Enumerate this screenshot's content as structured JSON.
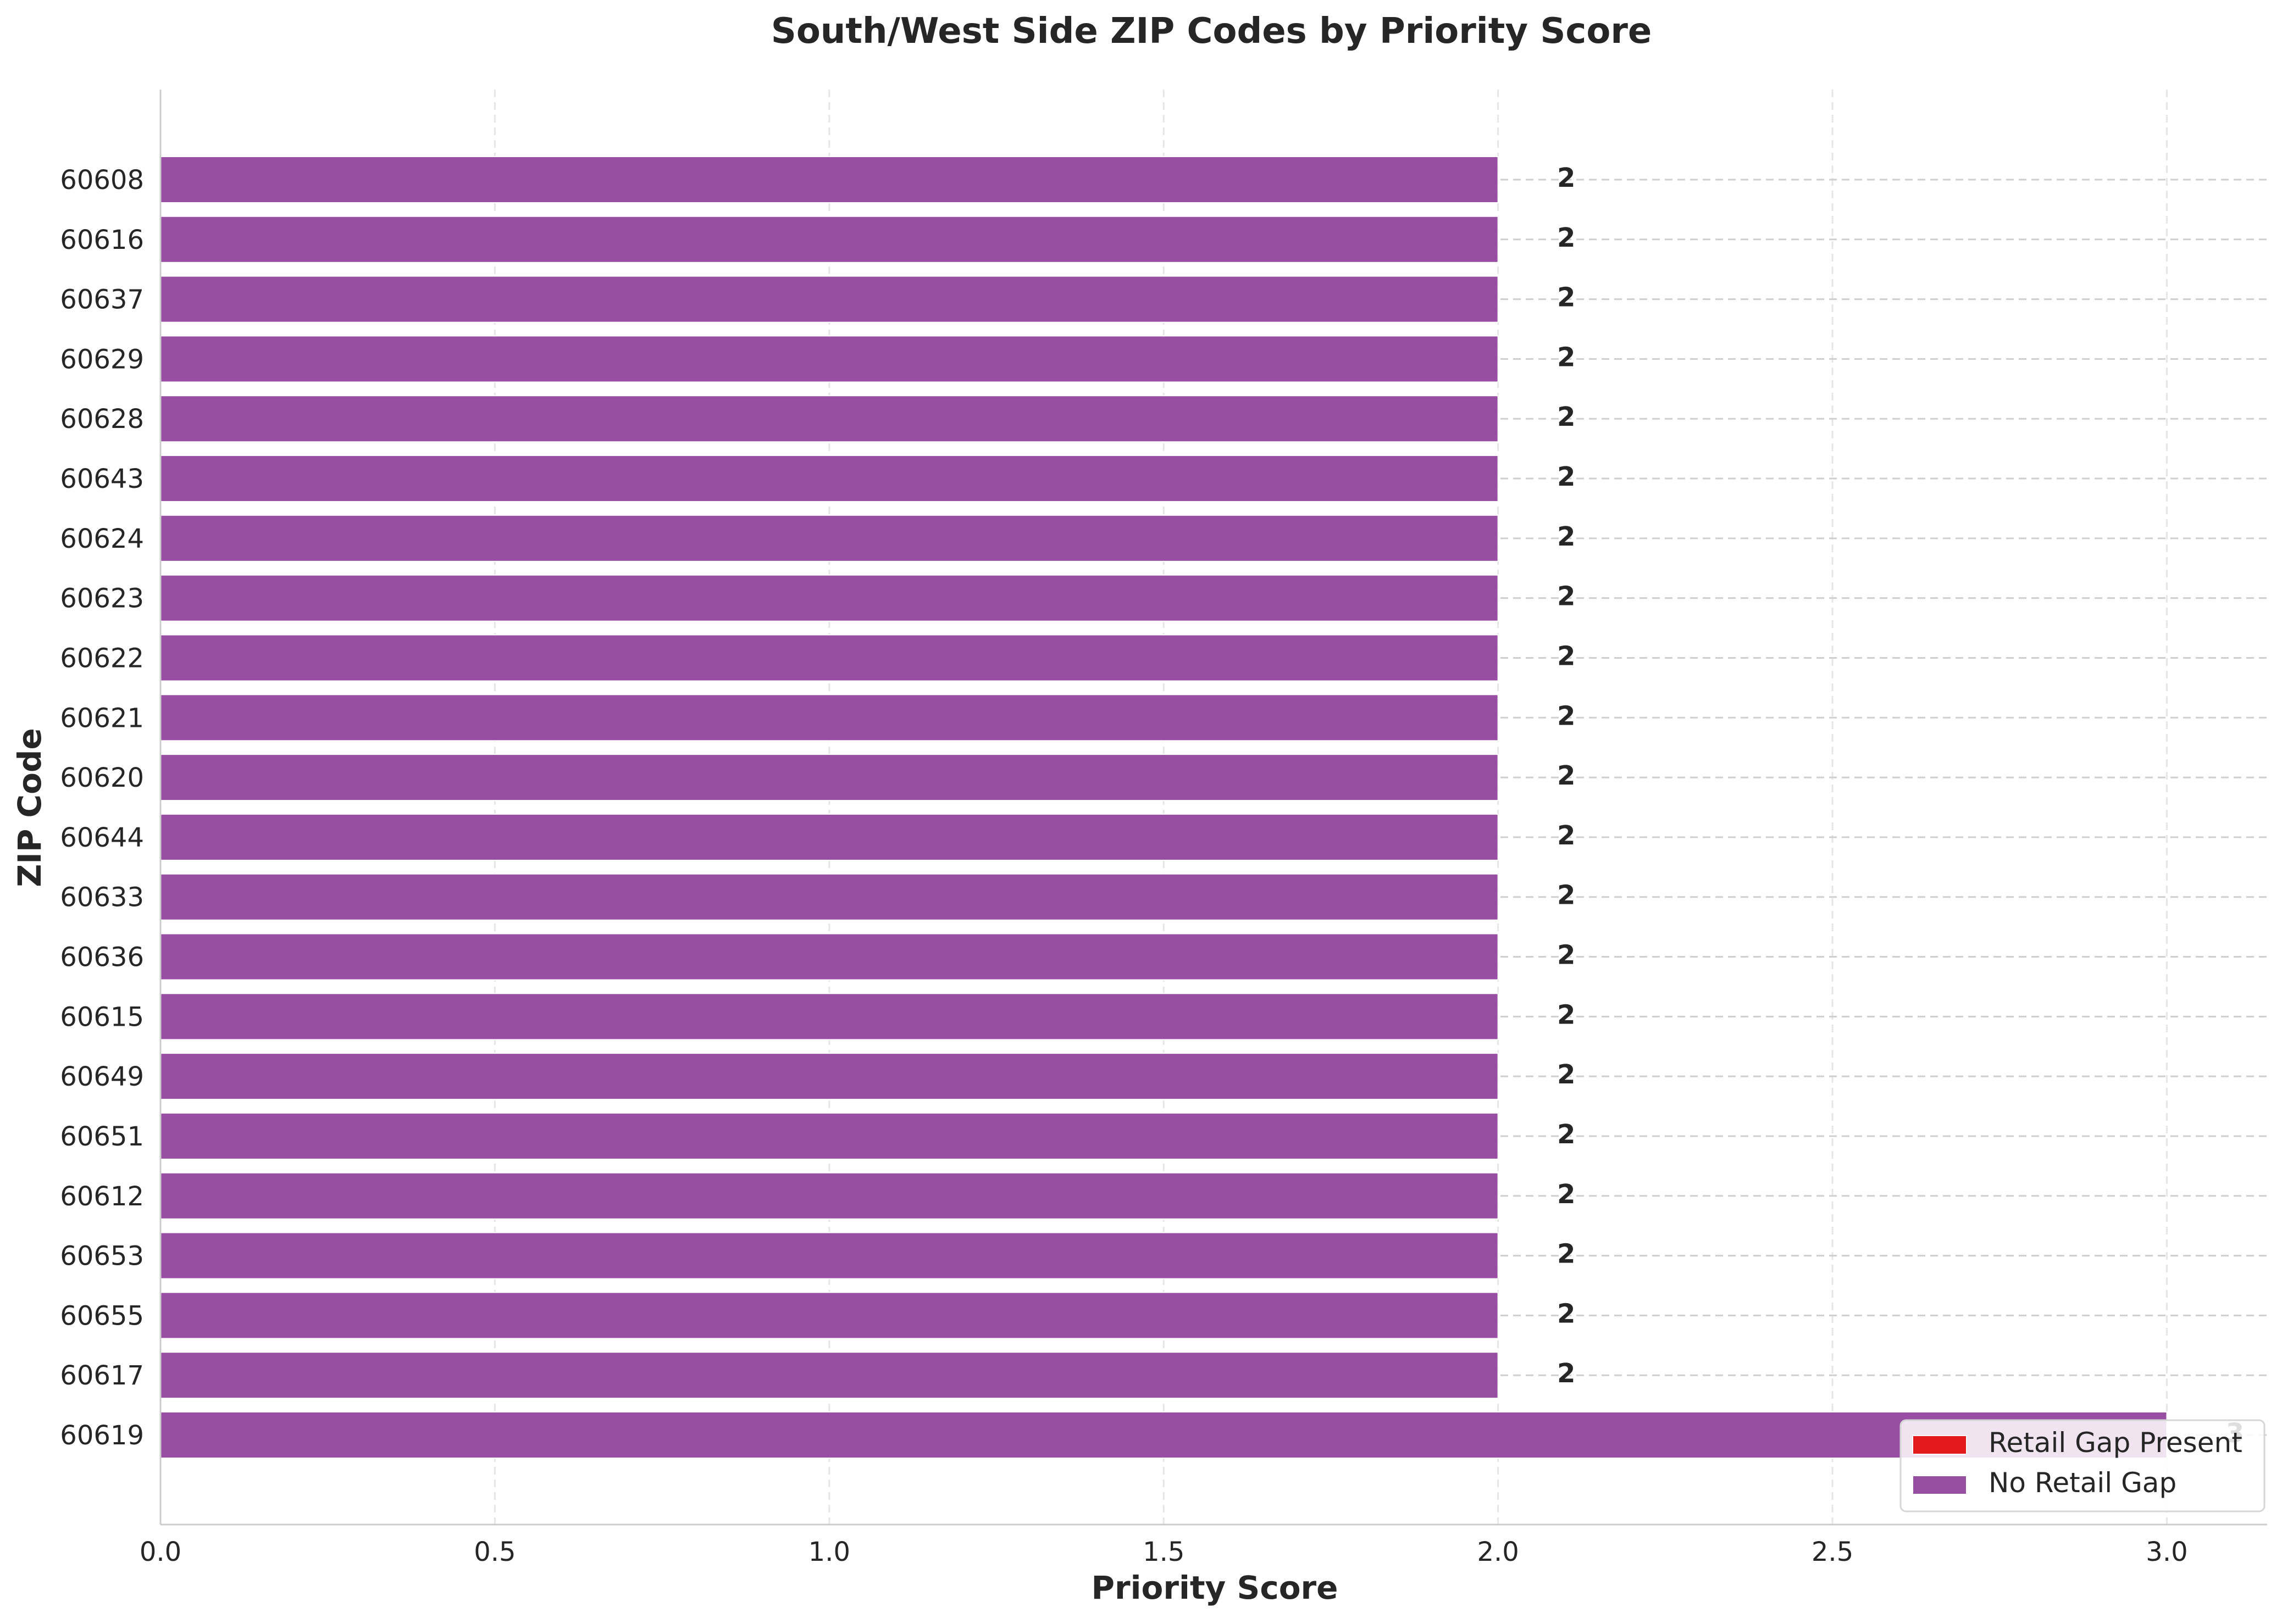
{
  "chart_data": {
    "type": "bar",
    "orientation": "horizontal",
    "title": "South/West Side ZIP Codes by Priority Score",
    "xlabel": "Priority Score",
    "ylabel": "ZIP Code",
    "xlim": [
      0,
      3.15
    ],
    "xticks": [
      0.0,
      0.5,
      1.0,
      1.5,
      2.0,
      2.5,
      3.0
    ],
    "xtick_labels": [
      "0.0",
      "0.5",
      "1.0",
      "1.5",
      "2.0",
      "2.5",
      "3.0"
    ],
    "grid": true,
    "legend_position": "bottom-right",
    "legend": [
      {
        "label": "Retail Gap Present",
        "color": "#e31a1c"
      },
      {
        "label": "No Retail Gap",
        "color": "#984ea3"
      }
    ],
    "bar_color": "#984ea3",
    "categories": [
      "60608",
      "60616",
      "60637",
      "60629",
      "60628",
      "60643",
      "60624",
      "60623",
      "60622",
      "60621",
      "60620",
      "60644",
      "60633",
      "60636",
      "60615",
      "60649",
      "60651",
      "60612",
      "60653",
      "60655",
      "60617",
      "60619"
    ],
    "values": [
      2,
      2,
      2,
      2,
      2,
      2,
      2,
      2,
      2,
      2,
      2,
      2,
      2,
      2,
      2,
      2,
      2,
      2,
      2,
      2,
      2,
      3
    ],
    "value_labels": [
      "2",
      "2",
      "2",
      "2",
      "2",
      "2",
      "2",
      "2",
      "2",
      "2",
      "2",
      "2",
      "2",
      "2",
      "2",
      "2",
      "2",
      "2",
      "2",
      "2",
      "2",
      "3"
    ],
    "retail_gap": [
      false,
      false,
      false,
      false,
      false,
      false,
      false,
      false,
      false,
      false,
      false,
      false,
      false,
      false,
      false,
      false,
      false,
      false,
      false,
      false,
      false,
      false
    ]
  }
}
